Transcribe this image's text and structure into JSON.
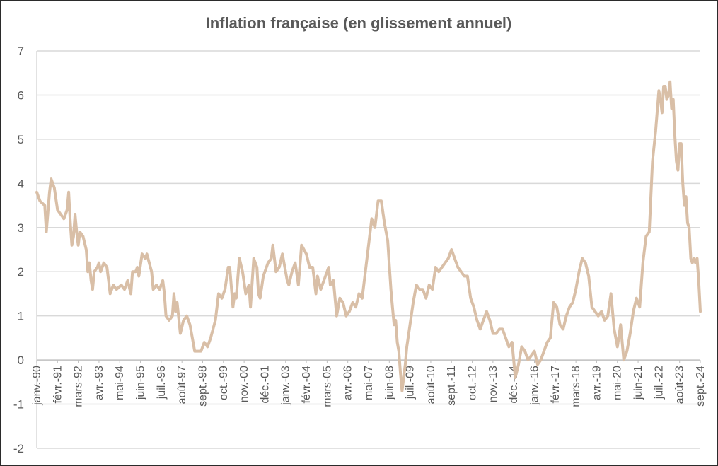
{
  "chart_data": {
    "type": "line",
    "title": "Inflation française (en glissement annuel)",
    "xlabel": "",
    "ylabel": "",
    "ylim": [
      -2,
      7
    ],
    "yticks": [
      -2,
      -1,
      0,
      1,
      2,
      3,
      4,
      5,
      6,
      7
    ],
    "grid": true,
    "legend": "none",
    "line_color": "#d9bfa7",
    "x_start": "1990-01",
    "x_end": "2024-09",
    "xtick_labels": [
      {
        "month": "1990-01",
        "label": "janv.-90"
      },
      {
        "month": "1991-02",
        "label": "févr.-91"
      },
      {
        "month": "1992-03",
        "label": "mars-92"
      },
      {
        "month": "1993-04",
        "label": "avr.-93"
      },
      {
        "month": "1994-05",
        "label": "mai-94"
      },
      {
        "month": "1995-06",
        "label": "juin-95"
      },
      {
        "month": "1996-07",
        "label": "juil.-96"
      },
      {
        "month": "1997-08",
        "label": "août-97"
      },
      {
        "month": "1998-09",
        "label": "sept.-98"
      },
      {
        "month": "1999-10",
        "label": "oct.-99"
      },
      {
        "month": "2000-11",
        "label": "nov.-00"
      },
      {
        "month": "2001-12",
        "label": "déc.-01"
      },
      {
        "month": "2003-01",
        "label": "janv.-03"
      },
      {
        "month": "2004-02",
        "label": "févr.-04"
      },
      {
        "month": "2005-03",
        "label": "mars-05"
      },
      {
        "month": "2006-04",
        "label": "avr.-06"
      },
      {
        "month": "2007-05",
        "label": "mai-07"
      },
      {
        "month": "2008-06",
        "label": "juin-08"
      },
      {
        "month": "2009-07",
        "label": "juil.-09"
      },
      {
        "month": "2010-08",
        "label": "août-10"
      },
      {
        "month": "2011-09",
        "label": "sept.-11"
      },
      {
        "month": "2012-10",
        "label": "oct.-12"
      },
      {
        "month": "2013-11",
        "label": "nov.-13"
      },
      {
        "month": "2014-12",
        "label": "déc.-14"
      },
      {
        "month": "2016-01",
        "label": "janv.-16"
      },
      {
        "month": "2017-02",
        "label": "févr.-17"
      },
      {
        "month": "2018-03",
        "label": "mars-18"
      },
      {
        "month": "2019-04",
        "label": "avr.-19"
      },
      {
        "month": "2020-05",
        "label": "mai-20"
      },
      {
        "month": "2021-06",
        "label": "juin-21"
      },
      {
        "month": "2022-07",
        "label": "juil.-22"
      },
      {
        "month": "2023-08",
        "label": "août-23"
      },
      {
        "month": "2024-09",
        "label": "sept.-24"
      }
    ],
    "series": [
      {
        "values": [
          [
            "1990-01",
            3.8
          ],
          [
            "1990-03",
            3.6
          ],
          [
            "1990-06",
            3.5
          ],
          [
            "1990-07",
            2.9
          ],
          [
            "1990-09",
            3.8
          ],
          [
            "1990-10",
            4.1
          ],
          [
            "1990-12",
            3.9
          ],
          [
            "1991-02",
            3.4
          ],
          [
            "1991-04",
            3.3
          ],
          [
            "1991-06",
            3.2
          ],
          [
            "1991-08",
            3.4
          ],
          [
            "1991-09",
            3.8
          ],
          [
            "1991-10",
            3.1
          ],
          [
            "1991-11",
            2.6
          ],
          [
            "1991-12",
            2.8
          ],
          [
            "1992-01",
            3.3
          ],
          [
            "1992-02",
            2.9
          ],
          [
            "1992-03",
            2.6
          ],
          [
            "1992-04",
            2.9
          ],
          [
            "1992-06",
            2.8
          ],
          [
            "1992-08",
            2.5
          ],
          [
            "1992-09",
            2.0
          ],
          [
            "1992-10",
            2.2
          ],
          [
            "1992-11",
            1.8
          ],
          [
            "1992-12",
            1.6
          ],
          [
            "1993-01",
            2.0
          ],
          [
            "1993-03",
            2.1
          ],
          [
            "1993-04",
            2.2
          ],
          [
            "1993-05",
            2.0
          ],
          [
            "1993-07",
            2.2
          ],
          [
            "1993-09",
            2.1
          ],
          [
            "1993-10",
            1.8
          ],
          [
            "1993-11",
            1.5
          ],
          [
            "1994-01",
            1.7
          ],
          [
            "1994-03",
            1.6
          ],
          [
            "1994-06",
            1.7
          ],
          [
            "1994-08",
            1.6
          ],
          [
            "1994-10",
            1.8
          ],
          [
            "1994-12",
            1.5
          ],
          [
            "1995-01",
            2.0
          ],
          [
            "1995-03",
            2.0
          ],
          [
            "1995-04",
            2.1
          ],
          [
            "1995-05",
            1.9
          ],
          [
            "1995-07",
            2.4
          ],
          [
            "1995-09",
            2.3
          ],
          [
            "1995-10",
            2.4
          ],
          [
            "1996-01",
            2.0
          ],
          [
            "1996-02",
            1.6
          ],
          [
            "1996-04",
            1.7
          ],
          [
            "1996-06",
            1.6
          ],
          [
            "1996-08",
            1.8
          ],
          [
            "1996-09",
            1.5
          ],
          [
            "1996-10",
            1.0
          ],
          [
            "1996-12",
            0.9
          ],
          [
            "1997-02",
            1.0
          ],
          [
            "1997-03",
            1.5
          ],
          [
            "1997-04",
            1.1
          ],
          [
            "1997-05",
            1.3
          ],
          [
            "1997-07",
            0.6
          ],
          [
            "1997-09",
            0.9
          ],
          [
            "1997-11",
            1.0
          ],
          [
            "1998-01",
            0.8
          ],
          [
            "1998-03",
            0.4
          ],
          [
            "1998-04",
            0.2
          ],
          [
            "1998-08",
            0.2
          ],
          [
            "1998-10",
            0.4
          ],
          [
            "1998-12",
            0.3
          ],
          [
            "1999-02",
            0.5
          ],
          [
            "1999-05",
            0.9
          ],
          [
            "1999-07",
            1.5
          ],
          [
            "1999-09",
            1.4
          ],
          [
            "1999-11",
            1.6
          ],
          [
            "2000-01",
            2.1
          ],
          [
            "2000-02",
            2.1
          ],
          [
            "2000-04",
            1.2
          ],
          [
            "2000-05",
            1.5
          ],
          [
            "2000-06",
            1.4
          ],
          [
            "2000-08",
            2.3
          ],
          [
            "2000-10",
            2.0
          ],
          [
            "2000-12",
            1.5
          ],
          [
            "2001-02",
            1.7
          ],
          [
            "2001-03",
            1.2
          ],
          [
            "2001-05",
            2.3
          ],
          [
            "2001-07",
            2.1
          ],
          [
            "2001-08",
            1.5
          ],
          [
            "2001-09",
            1.4
          ],
          [
            "2001-11",
            1.9
          ],
          [
            "2002-02",
            2.2
          ],
          [
            "2002-04",
            2.3
          ],
          [
            "2002-05",
            2.6
          ],
          [
            "2002-07",
            2.0
          ],
          [
            "2002-09",
            2.1
          ],
          [
            "2002-11",
            2.4
          ],
          [
            "2003-02",
            1.8
          ],
          [
            "2003-03",
            1.7
          ],
          [
            "2003-05",
            2.0
          ],
          [
            "2003-07",
            2.2
          ],
          [
            "2003-09",
            1.7
          ],
          [
            "2003-11",
            2.6
          ],
          [
            "2004-02",
            2.4
          ],
          [
            "2004-04",
            2.1
          ],
          [
            "2004-06",
            2.1
          ],
          [
            "2004-08",
            1.5
          ],
          [
            "2004-09",
            1.9
          ],
          [
            "2004-11",
            1.6
          ],
          [
            "2005-02",
            1.9
          ],
          [
            "2005-04",
            2.1
          ],
          [
            "2005-05",
            1.7
          ],
          [
            "2005-07",
            1.8
          ],
          [
            "2005-09",
            1.0
          ],
          [
            "2005-11",
            1.4
          ],
          [
            "2006-01",
            1.3
          ],
          [
            "2006-03",
            1.0
          ],
          [
            "2006-05",
            1.1
          ],
          [
            "2006-07",
            1.3
          ],
          [
            "2006-09",
            1.2
          ],
          [
            "2006-11",
            1.5
          ],
          [
            "2007-01",
            1.4
          ],
          [
            "2007-03",
            2.0
          ],
          [
            "2007-05",
            2.6
          ],
          [
            "2007-07",
            3.2
          ],
          [
            "2007-09",
            3.0
          ],
          [
            "2007-11",
            3.6
          ],
          [
            "2008-01",
            3.6
          ],
          [
            "2008-03",
            3.1
          ],
          [
            "2008-05",
            2.7
          ],
          [
            "2008-07",
            1.6
          ],
          [
            "2008-08",
            1.2
          ],
          [
            "2008-09",
            0.8
          ],
          [
            "2008-10",
            0.9
          ],
          [
            "2008-11",
            0.4
          ],
          [
            "2008-12",
            0.2
          ],
          [
            "2009-01",
            -0.3
          ],
          [
            "2009-02",
            -0.7
          ],
          [
            "2009-03",
            -0.4
          ],
          [
            "2009-04",
            -0.1
          ],
          [
            "2009-05",
            0.3
          ],
          [
            "2009-07",
            0.8
          ],
          [
            "2009-09",
            1.3
          ],
          [
            "2009-11",
            1.7
          ],
          [
            "2010-01",
            1.6
          ],
          [
            "2010-03",
            1.6
          ],
          [
            "2010-05",
            1.4
          ],
          [
            "2010-07",
            1.7
          ],
          [
            "2010-09",
            1.6
          ],
          [
            "2010-11",
            2.1
          ],
          [
            "2011-01",
            2.0
          ],
          [
            "2011-03",
            2.1
          ],
          [
            "2011-05",
            2.2
          ],
          [
            "2011-07",
            2.3
          ],
          [
            "2011-09",
            2.5
          ],
          [
            "2011-11",
            2.3
          ],
          [
            "2012-01",
            2.1
          ],
          [
            "2012-03",
            2.0
          ],
          [
            "2012-05",
            1.9
          ],
          [
            "2012-07",
            1.9
          ],
          [
            "2012-09",
            1.4
          ],
          [
            "2012-11",
            1.2
          ],
          [
            "2013-01",
            0.9
          ],
          [
            "2013-03",
            0.7
          ],
          [
            "2013-05",
            0.9
          ],
          [
            "2013-07",
            1.1
          ],
          [
            "2013-09",
            0.9
          ],
          [
            "2013-11",
            0.6
          ],
          [
            "2014-01",
            0.6
          ],
          [
            "2014-03",
            0.7
          ],
          [
            "2014-05",
            0.7
          ],
          [
            "2014-07",
            0.5
          ],
          [
            "2014-09",
            0.3
          ],
          [
            "2014-11",
            0.4
          ],
          [
            "2015-01",
            -0.4
          ],
          [
            "2015-03",
            -0.1
          ],
          [
            "2015-05",
            0.3
          ],
          [
            "2015-07",
            0.2
          ],
          [
            "2015-09",
            0.0
          ],
          [
            "2015-11",
            0.1
          ],
          [
            "2016-01",
            0.2
          ],
          [
            "2016-03",
            -0.1
          ],
          [
            "2016-05",
            0.0
          ],
          [
            "2016-07",
            0.2
          ],
          [
            "2016-09",
            0.4
          ],
          [
            "2016-11",
            0.5
          ],
          [
            "2017-01",
            1.3
          ],
          [
            "2017-03",
            1.2
          ],
          [
            "2017-05",
            0.8
          ],
          [
            "2017-07",
            0.7
          ],
          [
            "2017-09",
            1.0
          ],
          [
            "2017-11",
            1.2
          ],
          [
            "2018-01",
            1.3
          ],
          [
            "2018-03",
            1.6
          ],
          [
            "2018-05",
            2.0
          ],
          [
            "2018-07",
            2.3
          ],
          [
            "2018-09",
            2.2
          ],
          [
            "2018-11",
            1.9
          ],
          [
            "2019-01",
            1.2
          ],
          [
            "2019-03",
            1.1
          ],
          [
            "2019-05",
            1.0
          ],
          [
            "2019-07",
            1.1
          ],
          [
            "2019-09",
            0.9
          ],
          [
            "2019-11",
            1.0
          ],
          [
            "2020-01",
            1.5
          ],
          [
            "2020-03",
            0.7
          ],
          [
            "2020-05",
            0.3
          ],
          [
            "2020-07",
            0.8
          ],
          [
            "2020-09",
            0.0
          ],
          [
            "2020-11",
            0.2
          ],
          [
            "2021-01",
            0.6
          ],
          [
            "2021-03",
            1.1
          ],
          [
            "2021-05",
            1.4
          ],
          [
            "2021-07",
            1.2
          ],
          [
            "2021-09",
            2.2
          ],
          [
            "2021-11",
            2.8
          ],
          [
            "2022-01",
            2.9
          ],
          [
            "2022-03",
            4.5
          ],
          [
            "2022-05",
            5.2
          ],
          [
            "2022-07",
            6.1
          ],
          [
            "2022-08",
            5.9
          ],
          [
            "2022-09",
            5.6
          ],
          [
            "2022-10",
            6.2
          ],
          [
            "2022-11",
            6.2
          ],
          [
            "2022-12",
            5.9
          ],
          [
            "2023-01",
            6.0
          ],
          [
            "2023-02",
            6.3
          ],
          [
            "2023-03",
            5.7
          ],
          [
            "2023-04",
            5.9
          ],
          [
            "2023-05",
            5.1
          ],
          [
            "2023-06",
            4.5
          ],
          [
            "2023-07",
            4.3
          ],
          [
            "2023-08",
            4.9
          ],
          [
            "2023-09",
            4.9
          ],
          [
            "2023-10",
            4.0
          ],
          [
            "2023-11",
            3.5
          ],
          [
            "2023-12",
            3.7
          ],
          [
            "2024-01",
            3.1
          ],
          [
            "2024-02",
            3.0
          ],
          [
            "2024-03",
            2.3
          ],
          [
            "2024-04",
            2.2
          ],
          [
            "2024-05",
            2.3
          ],
          [
            "2024-06",
            2.2
          ],
          [
            "2024-07",
            2.3
          ],
          [
            "2024-08",
            1.8
          ],
          [
            "2024-09",
            1.1
          ]
        ]
      }
    ]
  }
}
